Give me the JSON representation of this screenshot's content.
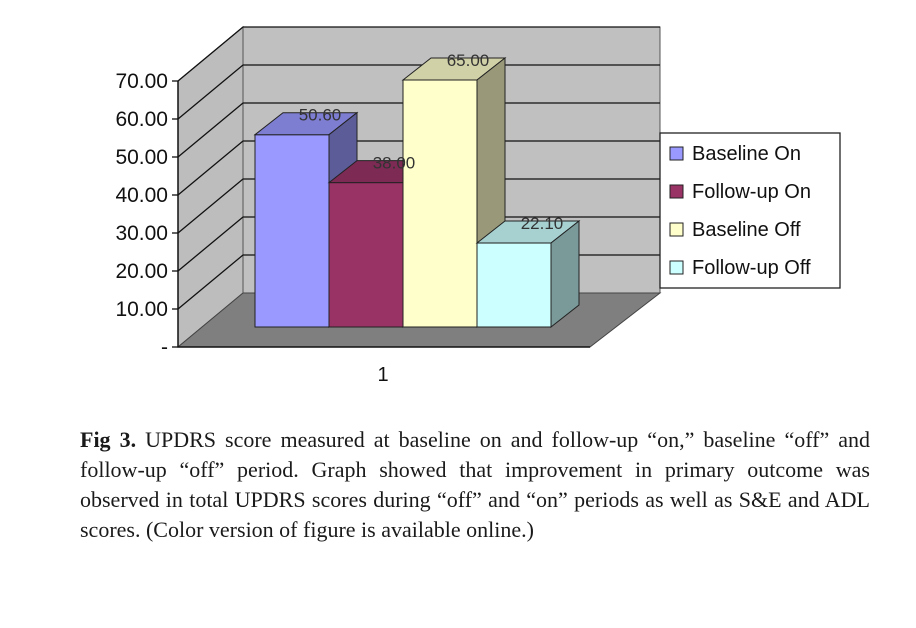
{
  "chart_data": {
    "type": "bar",
    "categories": [
      "1"
    ],
    "series": [
      {
        "name": "Baseline On",
        "values": [
          50.6
        ],
        "label": "50.60",
        "color": "#9999ff"
      },
      {
        "name": "Follow-up On",
        "values": [
          38.0
        ],
        "label": "38.00",
        "color": "#993366"
      },
      {
        "name": "Baseline Off",
        "values": [
          65.0
        ],
        "label": "65.00",
        "color": "#ffffcc"
      },
      {
        "name": "Follow-up Off",
        "values": [
          22.1
        ],
        "label": "22.10",
        "color": "#ccffff"
      }
    ],
    "ylim": [
      0,
      70
    ],
    "yticks": [
      "-",
      "10.00",
      "20.00",
      "30.00",
      "40.00",
      "50.00",
      "60.00",
      "70.00"
    ],
    "ytick_values": [
      0,
      10,
      20,
      30,
      40,
      50,
      60,
      70
    ],
    "grid": true,
    "legend_position": "right",
    "title": "",
    "xlabel": "",
    "ylabel": ""
  },
  "caption": {
    "lead": "Fig 3.",
    "text": "UPDRS score measured at baseline on and follow-up “on,” baseline “off” and follow-up “off” period. Graph showed that improvement in primary outcome was observed in total UPDRS scores during “off” and “on” periods as well as S&E and ADL scores. (Color version of figure is available online.)"
  }
}
